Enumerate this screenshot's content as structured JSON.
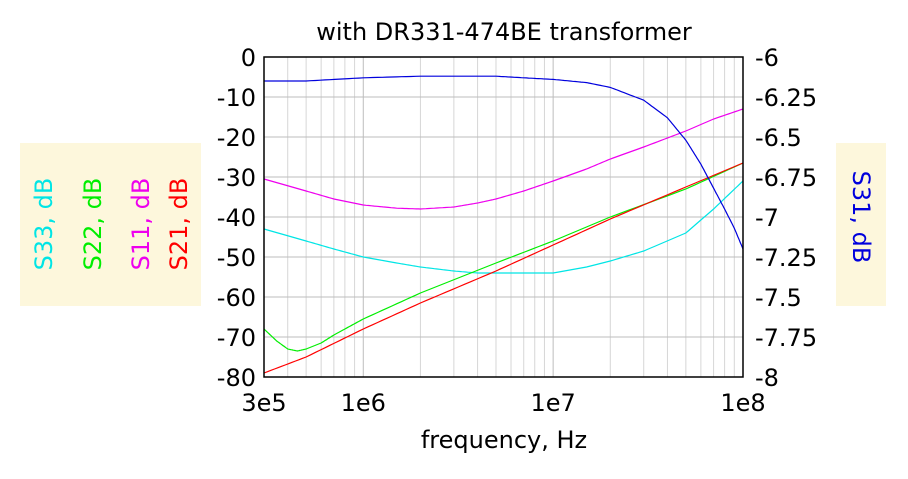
{
  "chart_data": {
    "type": "line",
    "title": "with DR331-474BE transformer",
    "xlabel": "frequency, Hz",
    "x_scale": "log",
    "xlim": [
      300000,
      100000000
    ],
    "x_ticks": [
      {
        "value": 300000,
        "label": "3e5"
      },
      {
        "value": 1000000,
        "label": "1e6"
      },
      {
        "value": 10000000,
        "label": "1e7"
      },
      {
        "value": 100000000,
        "label": "1e8"
      }
    ],
    "grid": true,
    "left_axis": {
      "ylim": [
        -80,
        0
      ],
      "ticks": [
        0,
        -10,
        -20,
        -30,
        -40,
        -50,
        -60,
        -70,
        -80
      ],
      "labels": [
        {
          "text": "S33, dB",
          "color": "#00e5e5"
        },
        {
          "text": "S22, dB",
          "color": "#00ee00"
        },
        {
          "text": "S11, dB",
          "color": "#ee00ee"
        },
        {
          "text": "S21, dB",
          "color": "#ff0000"
        }
      ]
    },
    "right_axis": {
      "ylim": [
        -8,
        -6
      ],
      "ticks": [
        {
          "value": -6,
          "label": "-6"
        },
        {
          "value": -6.25,
          "label": "-6.25"
        },
        {
          "value": -6.5,
          "label": "-6.5"
        },
        {
          "value": -6.75,
          "label": "-6.75"
        },
        {
          "value": -7,
          "label": "-7"
        },
        {
          "value": -7.25,
          "label": "-7.25"
        },
        {
          "value": -7.5,
          "label": "-7.5"
        },
        {
          "value": -7.75,
          "label": "-7.75"
        },
        {
          "value": -8,
          "label": "-8"
        }
      ],
      "label": {
        "text": "S31, dB",
        "color": "#0000dd"
      }
    },
    "series": [
      {
        "name": "S33, dB",
        "axis": "left",
        "color": "#00e5e5",
        "x": [
          300000,
          500000,
          700000,
          1000000,
          1500000,
          2000000,
          3000000,
          4000000,
          5000000,
          7000000,
          10000000,
          15000000,
          20000000,
          30000000,
          50000000,
          70000000,
          100000000
        ],
        "y": [
          -43,
          -46,
          -48,
          -50,
          -51.5,
          -52.5,
          -53.5,
          -54,
          -54,
          -54,
          -54,
          -52.5,
          -51,
          -48.5,
          -44,
          -38,
          -31
        ]
      },
      {
        "name": "S22, dB",
        "axis": "left",
        "color": "#00ee00",
        "x": [
          300000,
          350000,
          400000,
          450000,
          500000,
          600000,
          700000,
          800000,
          1000000,
          2000000,
          5000000,
          10000000,
          20000000,
          50000000,
          100000000
        ],
        "y": [
          -68,
          -71,
          -73,
          -73.5,
          -73,
          -71.5,
          -69.5,
          -68,
          -65.5,
          -59,
          -51.5,
          -46,
          -40,
          -33,
          -26.5
        ]
      },
      {
        "name": "S11, dB",
        "axis": "left",
        "color": "#ee00ee",
        "x": [
          300000,
          500000,
          700000,
          1000000,
          1500000,
          2000000,
          3000000,
          4000000,
          5000000,
          7000000,
          10000000,
          15000000,
          20000000,
          30000000,
          50000000,
          70000000,
          100000000
        ],
        "y": [
          -30.5,
          -33.5,
          -35.5,
          -37,
          -37.8,
          -38,
          -37.5,
          -36.5,
          -35.5,
          -33.5,
          -31,
          -28,
          -25.5,
          -22.5,
          -18.5,
          -15.5,
          -13
        ]
      },
      {
        "name": "S21, dB",
        "axis": "left",
        "color": "#ff0000",
        "x": [
          300000,
          500000,
          1000000,
          2000000,
          5000000,
          10000000,
          20000000,
          50000000,
          100000000
        ],
        "y": [
          -79,
          -75,
          -68,
          -61.5,
          -53.5,
          -47,
          -40.5,
          -32.5,
          -26.5
        ]
      },
      {
        "name": "S31, dB",
        "axis": "right",
        "color": "#0000dd",
        "x": [
          300000,
          500000,
          1000000,
          2000000,
          3000000,
          5000000,
          7000000,
          10000000,
          15000000,
          20000000,
          30000000,
          40000000,
          50000000,
          60000000,
          70000000,
          80000000,
          90000000,
          100000000
        ],
        "y": [
          -6.15,
          -6.15,
          -6.13,
          -6.12,
          -6.12,
          -6.12,
          -6.13,
          -6.14,
          -6.16,
          -6.19,
          -6.27,
          -6.38,
          -6.52,
          -6.67,
          -6.82,
          -6.95,
          -7.07,
          -7.2
        ]
      }
    ]
  }
}
